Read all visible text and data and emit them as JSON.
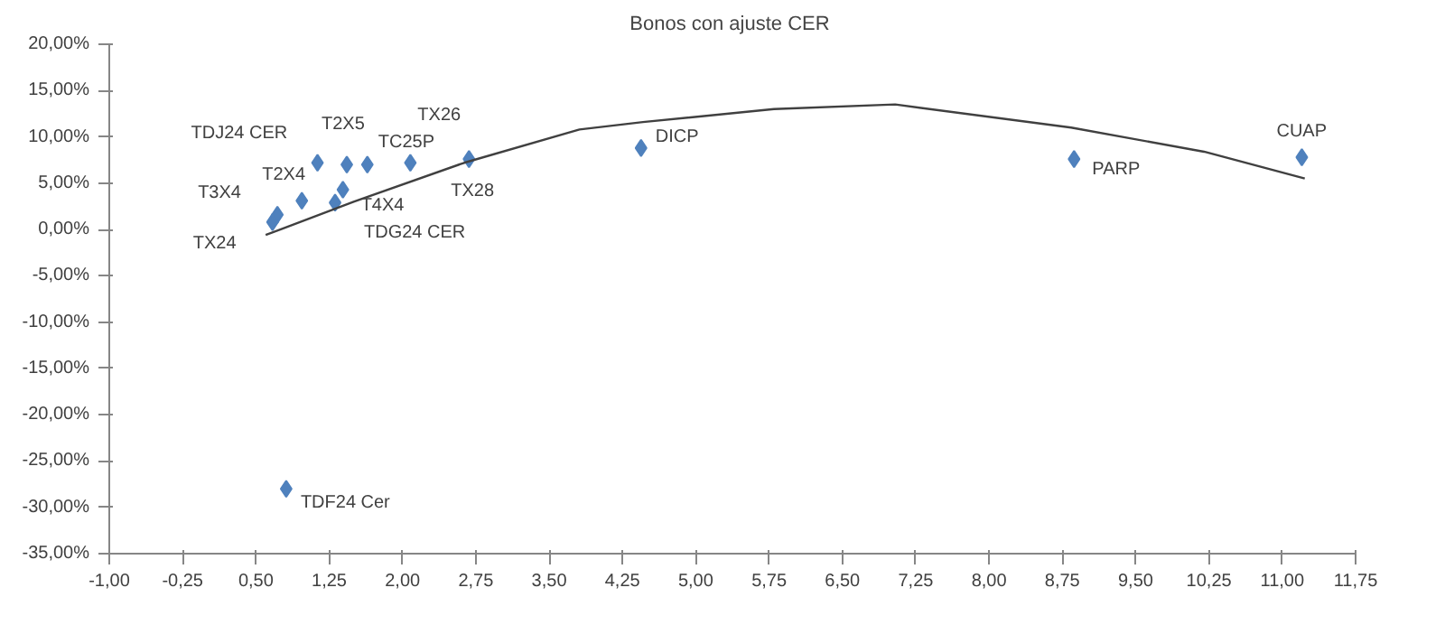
{
  "chart_data": {
    "type": "scatter",
    "title": "Bonos  con ajuste CER",
    "x": [
      0.67,
      0.72,
      0.97,
      1.13,
      1.31,
      1.39,
      1.43,
      1.64,
      2.08,
      2.68,
      4.44,
      8.87,
      11.2,
      0.81
    ],
    "series": [
      {
        "color": "#4f81bd",
        "values": [
          0.8,
          1.6,
          3.1,
          7.2,
          2.9,
          4.3,
          7.0,
          7.0,
          7.2,
          7.6,
          8.8,
          7.6,
          7.8,
          -28.0
        ]
      },
      {
        "type": "line",
        "marker": "none",
        "color": "#404040",
        "x": [
          0.6,
          1.5,
          2.63,
          3.81,
          4.46,
          5.8,
          7.04,
          8.84,
          10.2,
          11.23
        ],
        "values": [
          -0.6,
          3.0,
          7.2,
          10.8,
          11.6,
          13.0,
          13.5,
          11.0,
          8.4,
          5.5
        ]
      }
    ],
    "annotations": [
      {
        "text": "TX24",
        "x": 0.67,
        "y": 0.8
      },
      {
        "text": "T3X4",
        "x": 0.72,
        "y": 1.6
      },
      {
        "text": "T2X4",
        "x": 0.97,
        "y": 3.1
      },
      {
        "text": "TDJ24 CER",
        "x": 1.13,
        "y": 7.2
      },
      {
        "text": "TDG24 CER",
        "x": 1.31,
        "y": 2.9
      },
      {
        "text": "T4X4",
        "x": 1.39,
        "y": 4.3
      },
      {
        "text": "T2X5",
        "x": 1.43,
        "y": 7.0
      },
      {
        "text": "TC25P",
        "x": 1.64,
        "y": 7.0
      },
      {
        "text": "TX26",
        "x": 2.08,
        "y": 7.2
      },
      {
        "text": "TX28",
        "x": 2.68,
        "y": 7.6
      },
      {
        "text": "DICP",
        "x": 4.44,
        "y": 8.8
      },
      {
        "text": "PARP",
        "x": 8.87,
        "y": 7.6
      },
      {
        "text": "CUAP",
        "x": 11.2,
        "y": 7.8
      },
      {
        "text": "TDF24 Cer",
        "x": 0.81,
        "y": -28.0
      }
    ],
    "xlim": [
      -1.0,
      11.75
    ],
    "xticks": [
      {
        "value": -1.0,
        "label": "-1,00"
      },
      {
        "value": -0.25,
        "label": "-0,25"
      },
      {
        "value": 0.5,
        "label": "0,50"
      },
      {
        "value": 1.25,
        "label": "1,25"
      },
      {
        "value": 2.0,
        "label": "2,00"
      },
      {
        "value": 2.75,
        "label": "2,75"
      },
      {
        "value": 3.5,
        "label": "3,50"
      },
      {
        "value": 4.25,
        "label": "4,25"
      },
      {
        "value": 5.0,
        "label": "5,00"
      },
      {
        "value": 5.75,
        "label": "5,75"
      },
      {
        "value": 6.5,
        "label": "6,50"
      },
      {
        "value": 7.25,
        "label": "7,25"
      },
      {
        "value": 8.0,
        "label": "8,00"
      },
      {
        "value": 8.75,
        "label": "8,75"
      },
      {
        "value": 9.5,
        "label": "9,50"
      },
      {
        "value": 10.25,
        "label": "10,25"
      },
      {
        "value": 11.0,
        "label": "11,00"
      },
      {
        "value": 11.75,
        "label": "11,75"
      }
    ],
    "ylim": [
      -35,
      20
    ],
    "yticks": [
      {
        "value": -35,
        "label": "-35,00%"
      },
      {
        "value": -30,
        "label": "-30,00%"
      },
      {
        "value": -25,
        "label": "-25,00%"
      },
      {
        "value": -20,
        "label": "-20,00%"
      },
      {
        "value": -15,
        "label": "-15,00%"
      },
      {
        "value": -10,
        "label": "-10,00%"
      },
      {
        "value": -5,
        "label": "-5,00%"
      },
      {
        "value": 0,
        "label": "0,00%"
      },
      {
        "value": 5,
        "label": "5,00%"
      },
      {
        "value": 10,
        "label": "10,00%"
      },
      {
        "value": 15,
        "label": "15,00%"
      },
      {
        "value": 20,
        "label": "20,00%"
      }
    ],
    "marker": "diamond",
    "grid": false
  }
}
